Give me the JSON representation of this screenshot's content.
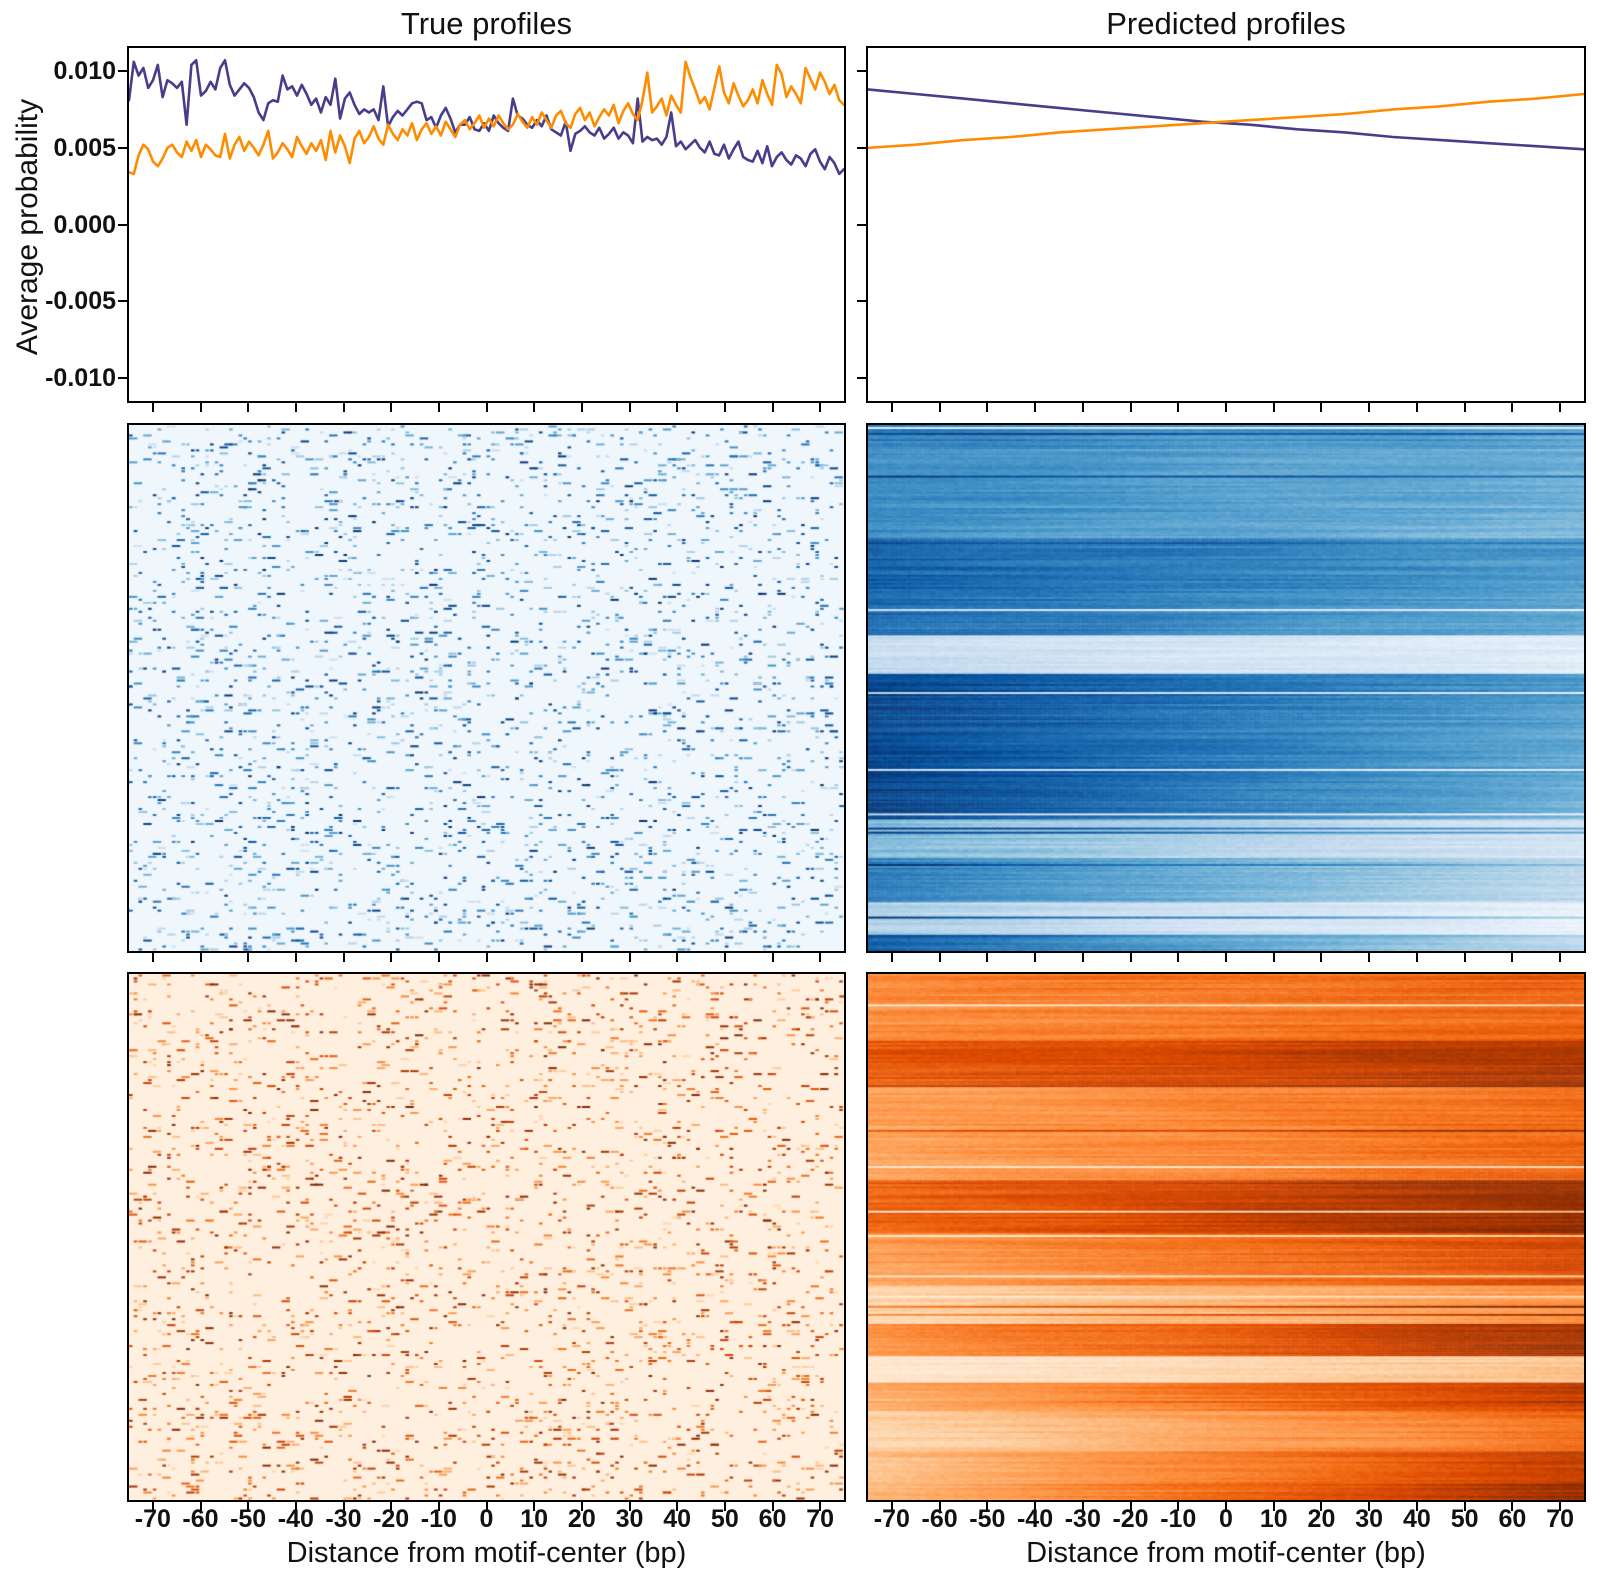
{
  "figure": {
    "titles": {
      "left": "True profiles",
      "right": "Predicted profiles"
    },
    "ylabel": "Average probability",
    "xlabel": "Distance from motif-center (bp)",
    "colors": {
      "task1_line": "#483d8b",
      "task2_line": "#ff8c00",
      "axis": "#000000",
      "background": "#ffffff"
    },
    "colormaps": {
      "Blues": [
        "#f7fbff",
        "#deebf7",
        "#c6dbef",
        "#9ecae1",
        "#6baed6",
        "#4292c6",
        "#2171b5",
        "#08519c",
        "#08306b"
      ],
      "Oranges": [
        "#fff5eb",
        "#fee6ce",
        "#fdd0a2",
        "#fdae6b",
        "#fd8d3c",
        "#f16913",
        "#d94801",
        "#a63603",
        "#7f2704"
      ]
    },
    "axes": {
      "x_range": [
        -75,
        75
      ],
      "y_range": [
        -0.0115,
        0.0115
      ],
      "x_tick_values": [
        -70,
        -60,
        -50,
        -40,
        -30,
        -20,
        -10,
        0,
        10,
        20,
        30,
        40,
        50,
        60,
        70
      ],
      "x_tick_labels": [
        "-70",
        "-60",
        "-50",
        "-40",
        "-30",
        "-20",
        "-10",
        "0",
        "10",
        "20",
        "30",
        "40",
        "50",
        "60",
        "70"
      ],
      "y_tick_values": [
        0.01,
        0.005,
        0.0,
        -0.005,
        -0.01
      ],
      "y_tick_labels": [
        "0.010",
        "0.005",
        "0.000",
        "-0.005",
        "-0.010"
      ]
    }
  },
  "chart_data": [
    {
      "id": "true-profiles",
      "type": "line",
      "title": "True profiles",
      "xlabel": "Distance from motif-center (bp)",
      "ylabel": "Average probability",
      "x_start": -75,
      "x_step": 1,
      "ylim": [
        -0.0115,
        0.0115
      ],
      "grid": false,
      "legend": "none",
      "series": [
        {
          "name": "task-1-purple",
          "color": "#483d8b",
          "values": [
            0.0081,
            0.0106,
            0.0097,
            0.0102,
            0.0089,
            0.0094,
            0.0104,
            0.0083,
            0.0094,
            0.0092,
            0.0089,
            0.0093,
            0.0065,
            0.0104,
            0.0107,
            0.0084,
            0.0087,
            0.0093,
            0.0088,
            0.0102,
            0.0107,
            0.0091,
            0.0084,
            0.0088,
            0.0092,
            0.0089,
            0.0083,
            0.0073,
            0.0068,
            0.0079,
            0.0081,
            0.008,
            0.0097,
            0.0088,
            0.009,
            0.0084,
            0.0091,
            0.0085,
            0.0078,
            0.0082,
            0.0073,
            0.0083,
            0.0078,
            0.0095,
            0.0069,
            0.0082,
            0.0086,
            0.0078,
            0.0072,
            0.0075,
            0.0073,
            0.0075,
            0.0068,
            0.009,
            0.0064,
            0.007,
            0.0074,
            0.0071,
            0.0075,
            0.0079,
            0.008,
            0.0079,
            0.0068,
            0.007,
            0.0063,
            0.0071,
            0.0076,
            0.0069,
            0.006,
            0.0065,
            0.0065,
            0.007,
            0.0062,
            0.0061,
            0.0066,
            0.0061,
            0.0071,
            0.0066,
            0.0063,
            0.0061,
            0.0082,
            0.0071,
            0.0069,
            0.0065,
            0.0063,
            0.0068,
            0.0064,
            0.0071,
            0.0062,
            0.006,
            0.0058,
            0.0067,
            0.0048,
            0.0059,
            0.0061,
            0.0064,
            0.006,
            0.0058,
            0.0063,
            0.0056,
            0.0059,
            0.0063,
            0.0056,
            0.006,
            0.0058,
            0.0053,
            0.0082,
            0.0054,
            0.0057,
            0.0055,
            0.0056,
            0.0052,
            0.0057,
            0.0073,
            0.0051,
            0.0054,
            0.0049,
            0.0052,
            0.0055,
            0.005,
            0.0047,
            0.0054,
            0.0046,
            0.0045,
            0.0052,
            0.0043,
            0.0049,
            0.0054,
            0.0044,
            0.0042,
            0.0041,
            0.0048,
            0.004,
            0.0051,
            0.0038,
            0.0044,
            0.0047,
            0.0042,
            0.0039,
            0.0045,
            0.0043,
            0.0038,
            0.0046,
            0.0049,
            0.0041,
            0.0036,
            0.0044,
            0.004,
            0.0033,
            0.0036
          ]
        },
        {
          "name": "task-2-orange",
          "color": "#ff8c00",
          "values": [
            0.0034,
            0.0033,
            0.0045,
            0.0052,
            0.0049,
            0.0041,
            0.0038,
            0.0043,
            0.005,
            0.0052,
            0.0047,
            0.0044,
            0.0054,
            0.0048,
            0.0055,
            0.0044,
            0.0052,
            0.0049,
            0.0045,
            0.0044,
            0.0059,
            0.0043,
            0.0052,
            0.0057,
            0.0048,
            0.0054,
            0.005,
            0.0045,
            0.0052,
            0.0061,
            0.0043,
            0.0047,
            0.0053,
            0.0049,
            0.0044,
            0.0057,
            0.0051,
            0.0046,
            0.0053,
            0.0048,
            0.0055,
            0.0042,
            0.0061,
            0.0047,
            0.0058,
            0.0051,
            0.004,
            0.0056,
            0.0061,
            0.0053,
            0.0057,
            0.0064,
            0.0056,
            0.0052,
            0.0065,
            0.0059,
            0.0055,
            0.0062,
            0.0058,
            0.0066,
            0.0055,
            0.0062,
            0.0066,
            0.0059,
            0.0064,
            0.0058,
            0.0067,
            0.0062,
            0.0057,
            0.0065,
            0.0068,
            0.0062,
            0.0066,
            0.0071,
            0.0063,
            0.0069,
            0.0064,
            0.0071,
            0.0066,
            0.0062,
            0.0065,
            0.0072,
            0.0067,
            0.0063,
            0.007,
            0.0065,
            0.0073,
            0.0068,
            0.0063,
            0.0071,
            0.0074,
            0.0066,
            0.0063,
            0.0072,
            0.0076,
            0.0068,
            0.0073,
            0.0064,
            0.007,
            0.0075,
            0.0071,
            0.0078,
            0.0066,
            0.0074,
            0.0079,
            0.0072,
            0.0068,
            0.0081,
            0.0099,
            0.0073,
            0.0077,
            0.0082,
            0.0071,
            0.0084,
            0.0078,
            0.0073,
            0.0106,
            0.0096,
            0.0088,
            0.0079,
            0.0083,
            0.0075,
            0.0089,
            0.0103,
            0.0086,
            0.0079,
            0.0092,
            0.0084,
            0.0077,
            0.0081,
            0.0088,
            0.0079,
            0.0094,
            0.0085,
            0.0078,
            0.0104,
            0.0098,
            0.0083,
            0.009,
            0.0085,
            0.0079,
            0.0102,
            0.0095,
            0.0088,
            0.0099,
            0.0093,
            0.0085,
            0.0091,
            0.0081,
            0.0078
          ]
        }
      ]
    },
    {
      "id": "predicted-profiles",
      "type": "line",
      "title": "Predicted profiles",
      "xlabel": "Distance from motif-center (bp)",
      "ylim": [
        -0.0115,
        0.0115
      ],
      "grid": false,
      "legend": "none",
      "x": [
        -75,
        -65,
        -55,
        -45,
        -35,
        -25,
        -15,
        -5,
        5,
        15,
        25,
        35,
        45,
        55,
        65,
        75
      ],
      "series": [
        {
          "name": "task-1-purple",
          "color": "#483d8b",
          "values": [
            0.0088,
            0.0085,
            0.0082,
            0.0079,
            0.0076,
            0.0073,
            0.007,
            0.0067,
            0.0065,
            0.0062,
            0.006,
            0.0057,
            0.0055,
            0.0053,
            0.0051,
            0.0049
          ]
        },
        {
          "name": "task-2-orange",
          "color": "#ff8c00",
          "values": [
            0.005,
            0.0052,
            0.0055,
            0.0057,
            0.006,
            0.0062,
            0.0064,
            0.0066,
            0.0068,
            0.007,
            0.0072,
            0.0075,
            0.0077,
            0.008,
            0.0082,
            0.0085
          ]
        }
      ]
    },
    {
      "id": "true-heatmap-task1",
      "type": "heatmap",
      "colormap": "Blues",
      "style": "sparse",
      "rows": 176,
      "cols": 150,
      "seed": 101,
      "background_level": 0.04,
      "description": "sparse random short horizontal dashes (observed counts) on near-white blue background"
    },
    {
      "id": "pred-heatmap-task1",
      "type": "heatmap",
      "colormap": "Blues",
      "style": "dense",
      "rows": 260,
      "cols": 150,
      "seed": 202,
      "gradient": "lighter-to-right",
      "description": "dense banded rows, dark at top/left, fading lighter toward bottom-right, dark band at very bottom"
    },
    {
      "id": "true-heatmap-task2",
      "type": "heatmap",
      "colormap": "Oranges",
      "style": "sparse",
      "rows": 176,
      "cols": 150,
      "seed": 303,
      "background_level": 0.05,
      "description": "sparse random short horizontal dashes (observed counts) on cream background"
    },
    {
      "id": "pred-heatmap-task2",
      "type": "heatmap",
      "colormap": "Oranges",
      "style": "dense",
      "rows": 260,
      "cols": 150,
      "seed": 404,
      "gradient": "lighter-to-left",
      "description": "dense banded rows, light at left darkening to the right, prominent pale bands in middle and lower sections"
    }
  ]
}
